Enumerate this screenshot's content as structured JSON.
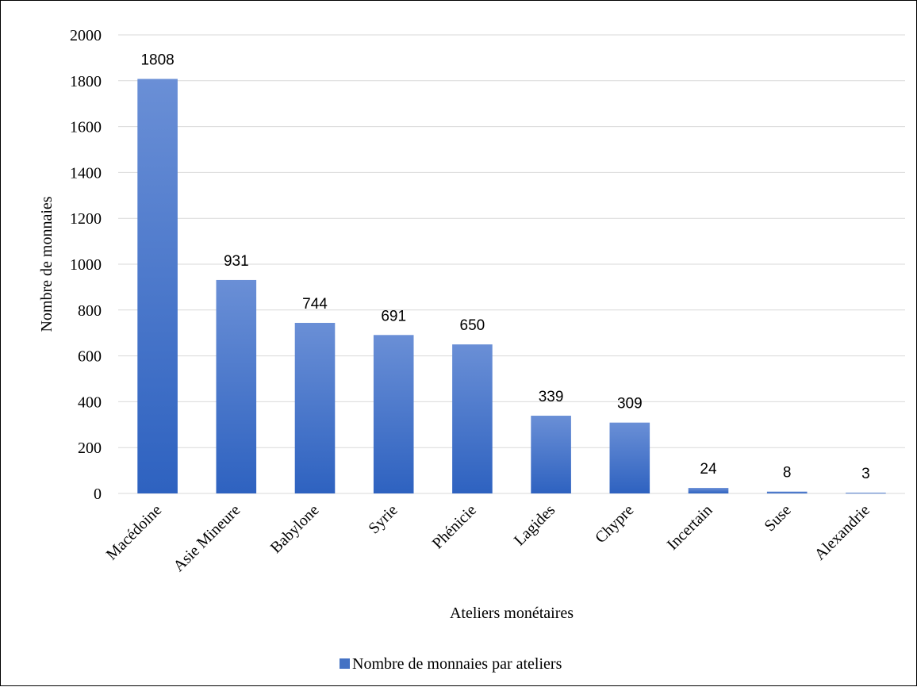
{
  "chart_data": {
    "type": "bar",
    "categories": [
      "Macédoine",
      "Asie Mineure",
      "Babylone",
      "Syrie",
      "Phénicie",
      "Lagides",
      "Chypre",
      "Incertain",
      "Suse",
      "Alexandrie"
    ],
    "series": [
      {
        "name": "Nombre de monnaies par ateliers",
        "values": [
          1808,
          931,
          744,
          691,
          650,
          339,
          309,
          24,
          8,
          3
        ],
        "color": "#4472c4"
      }
    ],
    "xlabel": "Ateliers monétaires",
    "ylabel": "Nombre de monnaies",
    "ylim": [
      0,
      2000
    ],
    "yticks": [
      0,
      200,
      400,
      600,
      800,
      1000,
      1200,
      1400,
      1600,
      1800,
      2000
    ],
    "grid": true,
    "legend": "bottom",
    "data_labels": true
  }
}
